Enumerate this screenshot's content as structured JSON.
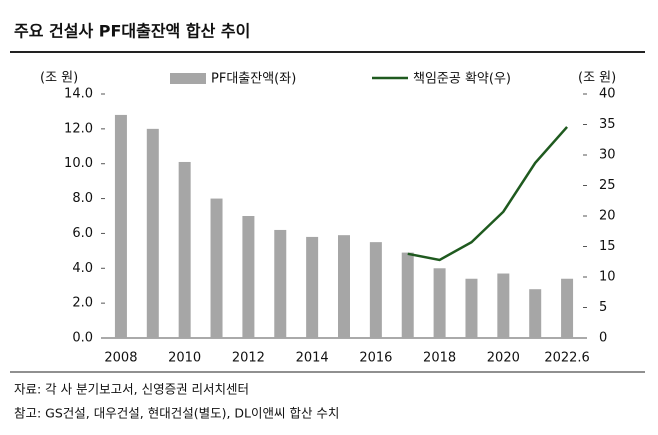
{
  "chart_data": {
    "type": "bar-line",
    "title": "주요 건설사 PF대출잔액 합산 추이",
    "y_label": "(조 원)",
    "y2_label": "(조 원)",
    "source": "자료: 각 사 분기보고서, 신영증권 리서치센터",
    "note": "참고: GS건설, 대우건설, 현대건설(별도), DL이앤씨 합산 수치",
    "categories": [
      "2008",
      null,
      "2010",
      null,
      "2012",
      null,
      "2014",
      null,
      "2016",
      null,
      "2018",
      null,
      "2020",
      null,
      "2022.6"
    ],
    "series": [
      {
        "name": "PF대출잔액(좌)",
        "type": "bar",
        "color": "#a6a6a6",
        "values": [
          12.8,
          12.0,
          10.1,
          8.0,
          7.0,
          6.2,
          5.8,
          5.9,
          5.5,
          4.9,
          4.0,
          3.4,
          3.7,
          2.8,
          3.4
        ]
      },
      {
        "name": "책임준공 확약(우)",
        "type": "line",
        "axis": "y2",
        "color": "#1f5a1f",
        "values": [
          null,
          null,
          null,
          null,
          null,
          null,
          null,
          null,
          null,
          13.8,
          12.8,
          15.7,
          20.7,
          28.7,
          34.6
        ]
      }
    ],
    "ylim": [
      0,
      14
    ],
    "yticks": [
      {
        "value": 0,
        "label": "0.0"
      },
      {
        "value": 2,
        "label": "2.0"
      },
      {
        "value": 4,
        "label": "4.0"
      },
      {
        "value": 6,
        "label": "6.0"
      },
      {
        "value": 8,
        "label": "8.0"
      },
      {
        "value": 10,
        "label": "10.0"
      },
      {
        "value": 12,
        "label": "12.0"
      },
      {
        "value": 14,
        "label": "14.0"
      }
    ],
    "y2lim": [
      0,
      40
    ],
    "y2ticks": [
      0,
      5,
      10,
      15,
      20,
      25,
      30,
      35,
      40
    ]
  }
}
